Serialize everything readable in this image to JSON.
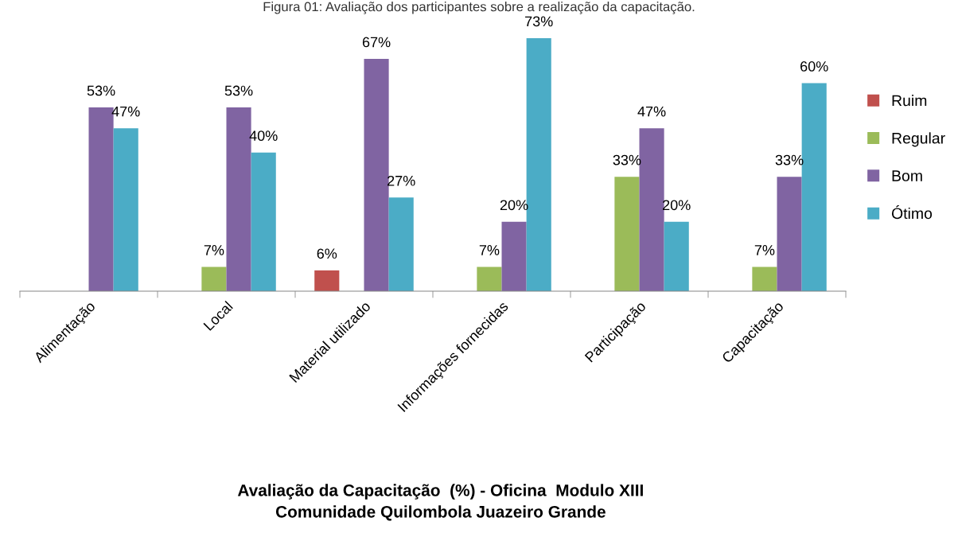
{
  "chart_data": {
    "type": "bar",
    "title": "Avaliação da Capacitação  (%) - Oficina  Modulo XIII\nComunidade Quilombola Juazeiro Grande",
    "annotations": [
      "Figura 01: Avaliação dos participantes sobre a realização da capacitação."
    ],
    "categories": [
      "Alimentação",
      "Local",
      "Material utilizado",
      "Informações fornecidas",
      "Participação",
      "Capacitação"
    ],
    "series": [
      {
        "name": "Ruim",
        "color": "#c0504d",
        "values": [
          null,
          null,
          6,
          null,
          null,
          null
        ],
        "value_labels": [
          null,
          null,
          "6%",
          null,
          null,
          null
        ]
      },
      {
        "name": "Regular",
        "color": "#9bbb59",
        "values": [
          null,
          7,
          null,
          7,
          33,
          7
        ],
        "value_labels": [
          null,
          "7%",
          null,
          "7%",
          "33%",
          "7%"
        ]
      },
      {
        "name": "Bom",
        "color": "#8064a2",
        "values": [
          53,
          53,
          67,
          20,
          47,
          33
        ],
        "value_labels": [
          "53%",
          "53%",
          "67%",
          "20%",
          "47%",
          "33%"
        ]
      },
      {
        "name": "Ótimo",
        "color": "#4bacc6",
        "values": [
          47,
          40,
          27,
          73,
          20,
          60
        ],
        "value_labels": [
          "47%",
          "40%",
          "27%",
          "73%",
          "20%",
          "60%"
        ]
      }
    ],
    "tick_labels": "x",
    "legend": "right"
  }
}
